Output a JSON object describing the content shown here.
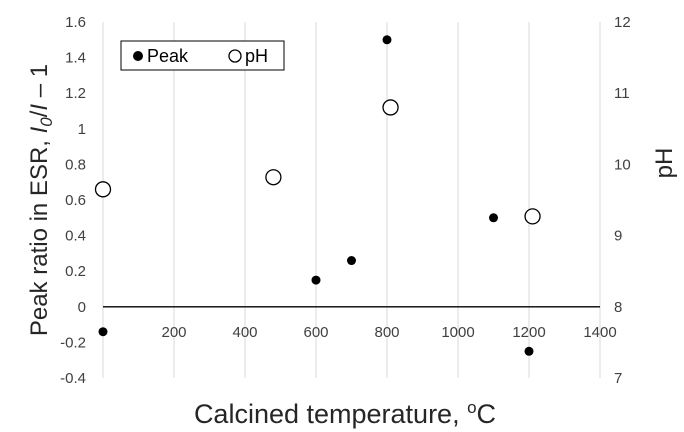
{
  "chart_data": {
    "type": "scatter",
    "xlabel": "Calcined temperature, °C",
    "ylabel_left": {
      "prefix": "Peak ratio in ESR, ",
      "i0": "I",
      "i0_sub": "0",
      "slash": "/",
      "i": "I",
      "suffix": " – 1"
    },
    "ylabel_right": "pH",
    "xlim": [
      0,
      1400
    ],
    "ylim_left": [
      -0.4,
      1.6
    ],
    "ylim_right": [
      7,
      12
    ],
    "x_ticks": [
      200,
      400,
      600,
      800,
      1000,
      1200,
      1400
    ],
    "y_left_ticks": [
      "-0.4",
      "-0.2",
      "0",
      "0.2",
      "0.4",
      "0.6",
      "0.8",
      "1",
      "1.2",
      "1.4",
      "1.6"
    ],
    "y_right_ticks": [
      "7",
      "8",
      "9",
      "10",
      "11",
      "12"
    ],
    "grid": "vertical",
    "legend_position": "top-left",
    "series": [
      {
        "name": "Peak",
        "axis": "left",
        "marker": "filled-circle",
        "color": "#000000",
        "points": [
          {
            "x": 0,
            "y": -0.14
          },
          {
            "x": 600,
            "y": 0.15
          },
          {
            "x": 700,
            "y": 0.26
          },
          {
            "x": 800,
            "y": 1.5
          },
          {
            "x": 1100,
            "y": 0.5
          },
          {
            "x": 1200,
            "y": -0.25
          }
        ]
      },
      {
        "name": "pH",
        "axis": "right",
        "marker": "open-circle",
        "color": "#000000",
        "points": [
          {
            "x": 0,
            "y": 9.65
          },
          {
            "x": 480,
            "y": 9.82
          },
          {
            "x": 810,
            "y": 10.8
          },
          {
            "x": 1210,
            "y": 9.27
          }
        ]
      }
    ]
  }
}
